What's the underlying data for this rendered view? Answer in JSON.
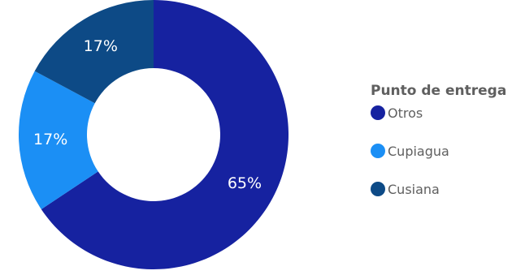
{
  "chart_data": {
    "type": "pie",
    "donut": true,
    "categories": [
      "Otros",
      "Cupiagua",
      "Cusiana"
    ],
    "values": [
      65,
      17,
      17
    ],
    "labels": [
      "65%",
      "17%",
      "17%"
    ],
    "colors": [
      "#1622a0",
      "#1b8ff5",
      "#0d4a86"
    ],
    "legend_title": "Punto de entrega",
    "legend_position": "right"
  }
}
